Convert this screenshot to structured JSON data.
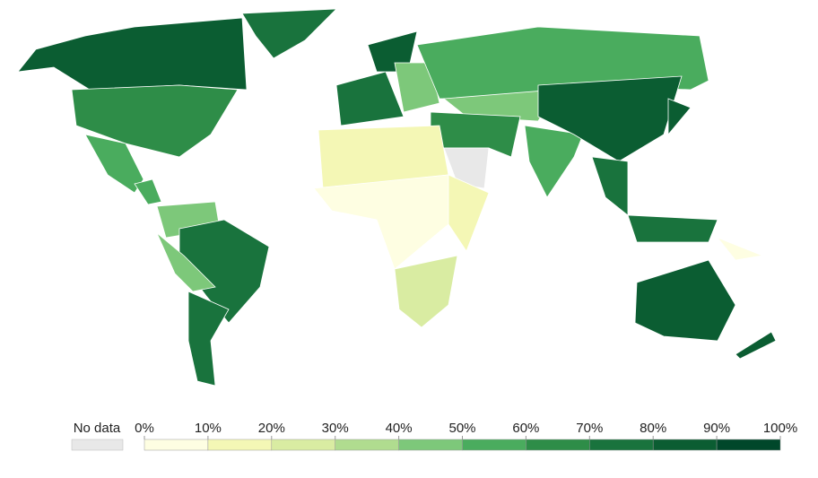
{
  "chart_data": {
    "type": "choropleth",
    "values": [
      80,
      65,
      70,
      55,
      50,
      40,
      75,
      45,
      75,
      75,
      80,
      40,
      55,
      45,
      60,
      null,
      10,
      5,
      15,
      25,
      55,
      85,
      75,
      70,
      80,
      85,
      80,
      5
    ],
    "no_data_label": "No data",
    "no_data_color": "#e8e8e8",
    "colors": [
      "#fefee2",
      "#f4f7b5",
      "#d9eca2",
      "#b0dc8f",
      "#7dc87a",
      "#4aac5e",
      "#2e8d48",
      "#19733d",
      "#0b5d32",
      "#00472a"
    ],
    "colorbar_ticks": [
      {
        "value": 0,
        "label": "0%"
      },
      {
        "value": 10,
        "label": "10%"
      },
      {
        "value": 20,
        "label": "20%"
      },
      {
        "value": 30,
        "label": "30%"
      },
      {
        "value": 40,
        "label": "40%"
      },
      {
        "value": 50,
        "label": "50%"
      },
      {
        "value": 60,
        "label": "60%"
      },
      {
        "value": 70,
        "label": "70%"
      },
      {
        "value": 80,
        "label": "80%"
      },
      {
        "value": 90,
        "label": "90%"
      },
      {
        "value": 100,
        "label": "100%"
      }
    ]
  }
}
